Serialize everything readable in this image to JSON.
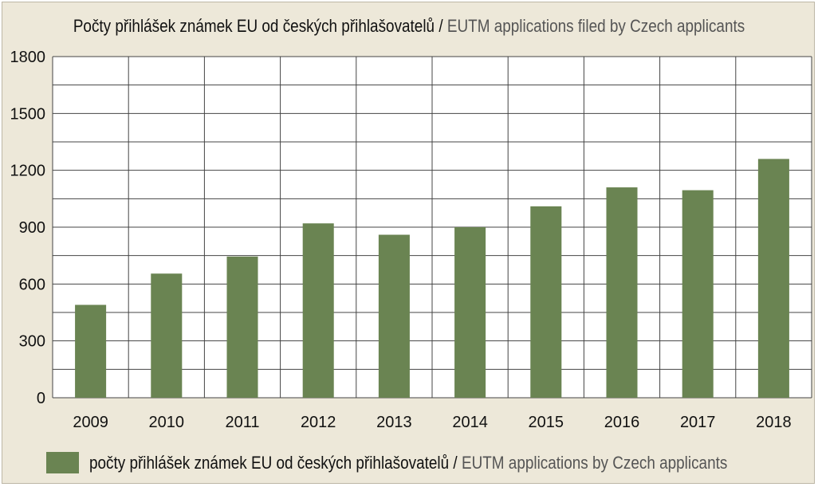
{
  "chart_data": {
    "type": "bar",
    "title": "Počty přihlášek známek EU od českých přihlašovatelů",
    "subtitle": "EUTM applications filed by Czech applicants",
    "title_separator": "/",
    "categories": [
      "2009",
      "2010",
      "2011",
      "2012",
      "2013",
      "2014",
      "2015",
      "2016",
      "2017",
      "2018"
    ],
    "series": [
      {
        "name": "počty přihlášek známek EU od českých přihlašovatelů",
        "name_en": "EUTM applications by Czech applicants",
        "color": "#6a8452",
        "values": [
          490,
          655,
          745,
          920,
          860,
          900,
          1010,
          1110,
          1095,
          1260
        ]
      }
    ],
    "ylim": [
      0,
      1800
    ],
    "yticks": [
      "0",
      "300",
      "600",
      "900",
      "1200",
      "1500",
      "1800"
    ],
    "xlabel": "",
    "ylabel": "",
    "grid": true,
    "legend_position": "bottom-left",
    "colors": {
      "background": "#ede8d9",
      "plot_background": "#ffffff",
      "grid": "#444444",
      "bar": "#6a8452"
    }
  }
}
